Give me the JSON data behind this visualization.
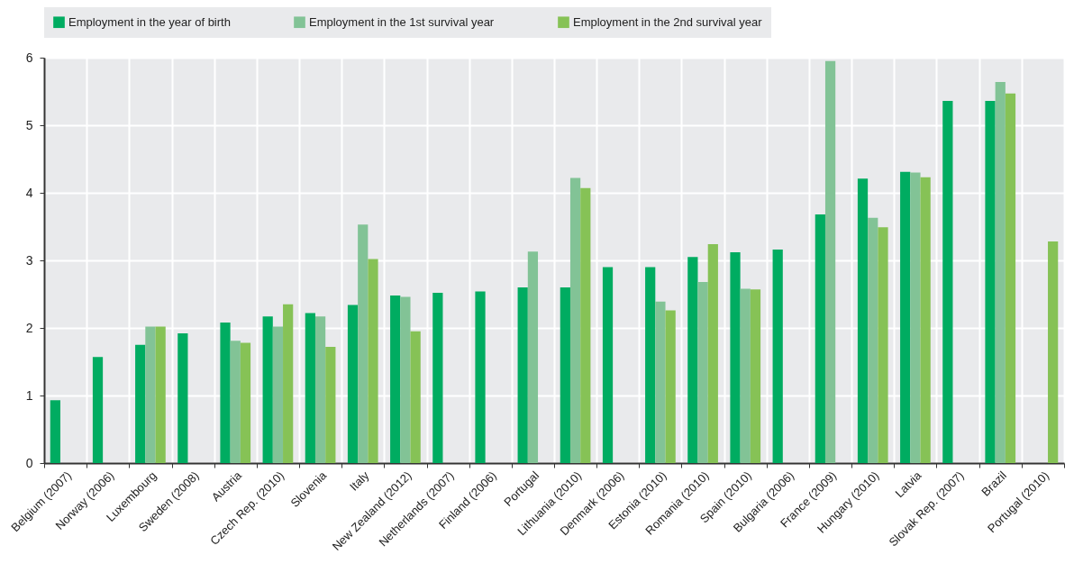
{
  "chart_data": {
    "type": "bar",
    "categories": [
      "Belgium (2007)",
      "Norway (2006)",
      "Luxembourg",
      "Sweden (2008)",
      "Austria",
      "Czech Rep. (2010)",
      "Slovenia",
      "Italy",
      "New Zealand (2012)",
      "Netherlands (2007)",
      "Finland (2006)",
      "Portugal",
      "Lithuania (2010)",
      "Denmark (2006)",
      "Estonia (2010)",
      "Romania (2010)",
      "Spain (2010)",
      "Bulgaria (2006)",
      "France (2009)",
      "Hungary (2010)",
      "Latvia",
      "Slovak Rep. (2007)",
      "Brazil",
      "Portugal (2010)"
    ],
    "series": [
      {
        "name": "Employment in the year of birth",
        "color": "#00ac61",
        "values": [
          0.93,
          1.57,
          1.75,
          1.92,
          2.08,
          2.17,
          2.22,
          2.34,
          2.48,
          2.52,
          2.54,
          2.6,
          2.6,
          2.9,
          2.9,
          3.05,
          3.12,
          3.16,
          3.68,
          4.21,
          4.31,
          5.36,
          5.36,
          null
        ]
      },
      {
        "name": "Employment in the 1st survival year",
        "color": "#82c396",
        "values": [
          null,
          null,
          2.02,
          null,
          1.81,
          2.02,
          2.17,
          3.53,
          2.46,
          null,
          null,
          3.13,
          4.22,
          null,
          2.39,
          2.68,
          2.58,
          null,
          5.95,
          3.63,
          4.3,
          null,
          5.64,
          null
        ]
      },
      {
        "name": "Employment in the 2nd survival year",
        "color": "#86c256",
        "values": [
          null,
          null,
          2.02,
          null,
          1.78,
          2.35,
          1.72,
          3.02,
          1.95,
          null,
          null,
          null,
          4.07,
          null,
          2.26,
          3.24,
          2.57,
          null,
          null,
          3.49,
          4.23,
          null,
          5.47,
          3.28
        ]
      }
    ],
    "ylim": [
      0,
      6
    ],
    "yticks": [
      0,
      1,
      2,
      3,
      4,
      5,
      6
    ],
    "grid": true,
    "legend": "top"
  }
}
